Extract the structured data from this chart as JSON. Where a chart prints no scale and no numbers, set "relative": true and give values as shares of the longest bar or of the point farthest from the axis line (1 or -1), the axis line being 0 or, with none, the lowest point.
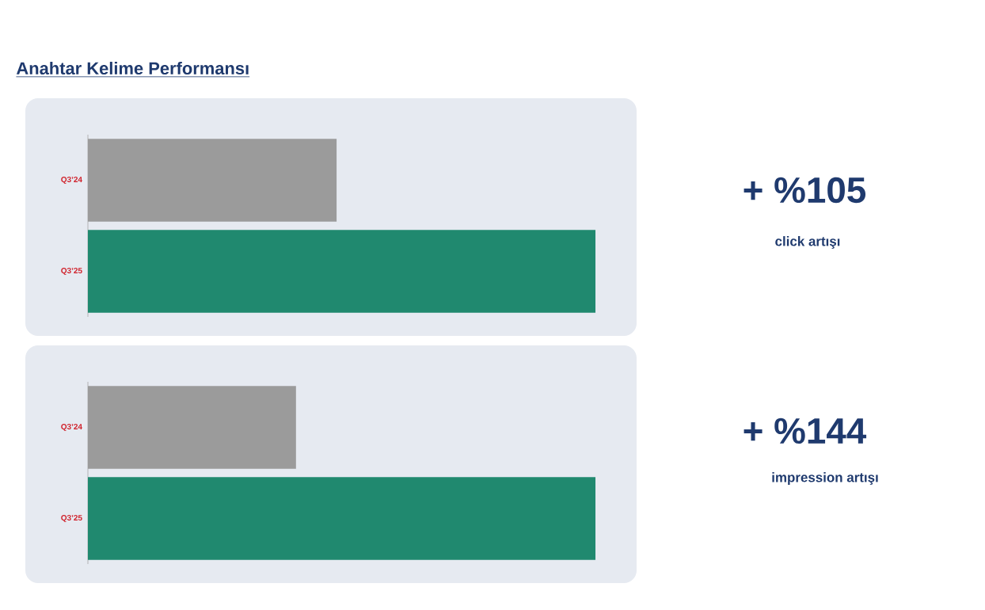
{
  "chart_data": [
    {
      "type": "bar",
      "orientation": "horizontal",
      "relative": true,
      "title": "Anahtar Kelime Performansı",
      "categories": [
        "Q3’24",
        "Q3’25"
      ],
      "values": [
        0.49,
        1
      ],
      "colors": [
        "#9b9b9b",
        "#20896f"
      ],
      "annotations": [
        "+ %105",
        "click artışı"
      ]
    },
    {
      "type": "bar",
      "orientation": "horizontal",
      "relative": true,
      "categories": [
        "Q3’24",
        "Q3’25"
      ],
      "values": [
        0.41,
        1
      ],
      "colors": [
        "#9b9b9b",
        "#20896f"
      ],
      "annotations": [
        "+ %144",
        "impression artışı"
      ]
    }
  ]
}
